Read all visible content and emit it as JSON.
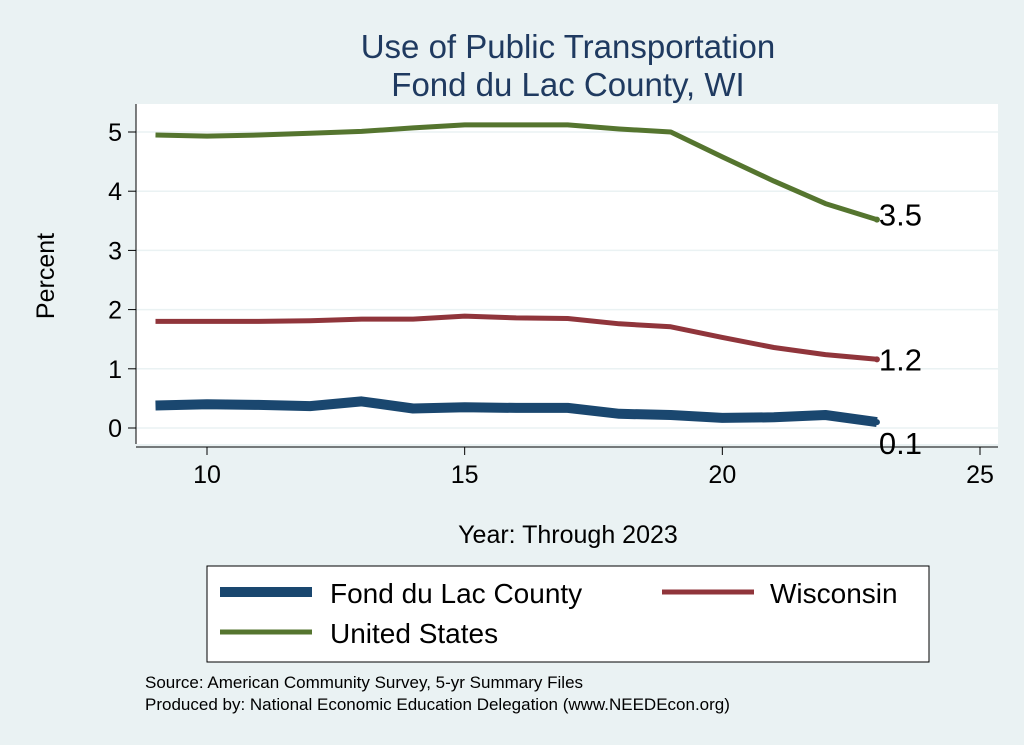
{
  "chart_data": {
    "type": "line",
    "title": [
      "Use of Public Transportation",
      "Fond du Lac County, WI"
    ],
    "xlabel": "Year: Through 2023",
    "ylabel": "Percent",
    "xlim": [
      9,
      25
    ],
    "ylim": [
      0,
      5.2
    ],
    "xticks": [
      10,
      15,
      20,
      25
    ],
    "yticks": [
      0,
      1,
      2,
      3,
      4,
      5
    ],
    "grid": true,
    "legend_position": "bottom",
    "x": [
      9,
      10,
      11,
      12,
      13,
      14,
      15,
      16,
      17,
      18,
      19,
      20,
      21,
      22,
      23
    ],
    "series": [
      {
        "name": "Fond du Lac County",
        "color": "#1a476f",
        "values": [
          0.38,
          0.4,
          0.39,
          0.37,
          0.45,
          0.33,
          0.35,
          0.34,
          0.34,
          0.24,
          0.22,
          0.17,
          0.18,
          0.22,
          0.1
        ],
        "end_label": "0.1"
      },
      {
        "name": "Wisconsin",
        "color": "#90353b",
        "values": [
          1.8,
          1.8,
          1.8,
          1.81,
          1.84,
          1.84,
          1.89,
          1.86,
          1.85,
          1.76,
          1.71,
          1.53,
          1.36,
          1.24,
          1.16
        ],
        "end_label": "1.2"
      },
      {
        "name": "United States",
        "color": "#55752f",
        "values": [
          4.95,
          4.93,
          4.95,
          4.98,
          5.01,
          5.07,
          5.12,
          5.12,
          5.12,
          5.05,
          5.0,
          4.58,
          4.17,
          3.79,
          3.52
        ],
        "end_label": "3.5"
      }
    ]
  },
  "notes": {
    "source": "Source: American Community Survey, 5-yr Summary Files",
    "producer": "Produced by: National Economic Education Delegation (www.NEEDEcon.org)"
  }
}
